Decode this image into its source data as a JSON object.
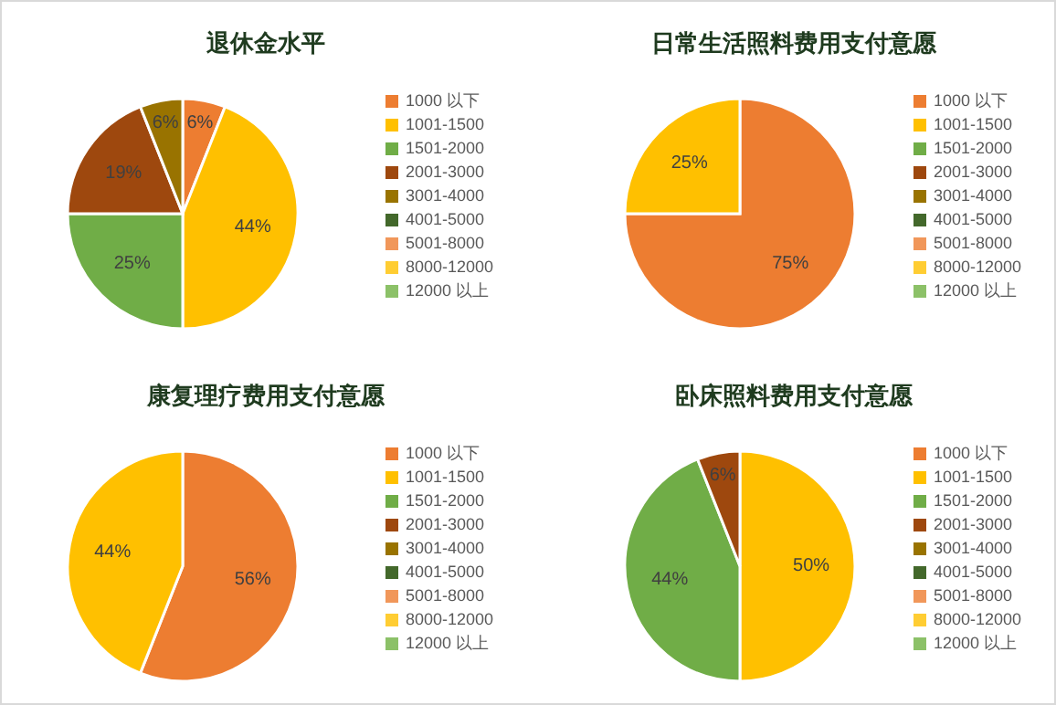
{
  "chart_data": [
    {
      "type": "pie",
      "title": "退休金水平",
      "categories": [
        "1000 以下",
        "1001-1500",
        "1501-2000",
        "2001-3000",
        "3001-4000",
        "4001-5000",
        "5001-8000",
        "8000-12000",
        "12000 以上"
      ],
      "values": [
        6,
        44,
        25,
        19,
        6,
        0,
        0,
        0,
        0
      ],
      "value_labels": [
        "6%",
        "44%",
        "25%",
        "19%",
        "6%",
        null,
        null,
        null,
        null
      ],
      "colors": [
        "#ed7d31",
        "#ffc000",
        "#70ad47",
        "#9e480e",
        "#997300",
        "#43682b",
        "#f1975a",
        "#ffcd33",
        "#8cc168"
      ],
      "legend": "right"
    },
    {
      "type": "pie",
      "title": "日常生活照料费用支付意愿",
      "categories": [
        "1000 以下",
        "1001-1500",
        "1501-2000",
        "2001-3000",
        "3001-4000",
        "4001-5000",
        "5001-8000",
        "8000-12000",
        "12000 以上"
      ],
      "values": [
        75,
        25,
        0,
        0,
        0,
        0,
        0,
        0,
        0
      ],
      "value_labels": [
        "75%",
        "25%",
        null,
        null,
        null,
        null,
        null,
        null,
        null
      ],
      "colors": [
        "#ed7d31",
        "#ffc000",
        "#70ad47",
        "#9e480e",
        "#997300",
        "#43682b",
        "#f1975a",
        "#ffcd33",
        "#8cc168"
      ],
      "legend": "right"
    },
    {
      "type": "pie",
      "title": "康复理疗费用支付意愿",
      "categories": [
        "1000 以下",
        "1001-1500",
        "1501-2000",
        "2001-3000",
        "3001-4000",
        "4001-5000",
        "5001-8000",
        "8000-12000",
        "12000 以上"
      ],
      "values": [
        56,
        44,
        0,
        0,
        0,
        0,
        0,
        0,
        0
      ],
      "value_labels": [
        "56%",
        "44%",
        null,
        null,
        null,
        null,
        null,
        null,
        null
      ],
      "colors": [
        "#ed7d31",
        "#ffc000",
        "#70ad47",
        "#9e480e",
        "#997300",
        "#43682b",
        "#f1975a",
        "#ffcd33",
        "#8cc168"
      ],
      "legend": "right"
    },
    {
      "type": "pie",
      "title": "卧床照料费用支付意愿",
      "categories": [
        "1000 以下",
        "1001-1500",
        "1501-2000",
        "2001-3000",
        "3001-4000",
        "4001-5000",
        "5001-8000",
        "8000-12000",
        "12000 以上"
      ],
      "values": [
        0,
        50,
        44,
        6,
        0,
        0,
        0,
        0,
        0
      ],
      "value_labels": [
        null,
        "50%",
        "44%",
        "6%",
        null,
        null,
        null,
        null,
        null
      ],
      "colors": [
        "#ed7d31",
        "#ffc000",
        "#70ad47",
        "#9e480e",
        "#997300",
        "#43682b",
        "#f1975a",
        "#ffcd33",
        "#8cc168"
      ],
      "legend": "right"
    }
  ]
}
